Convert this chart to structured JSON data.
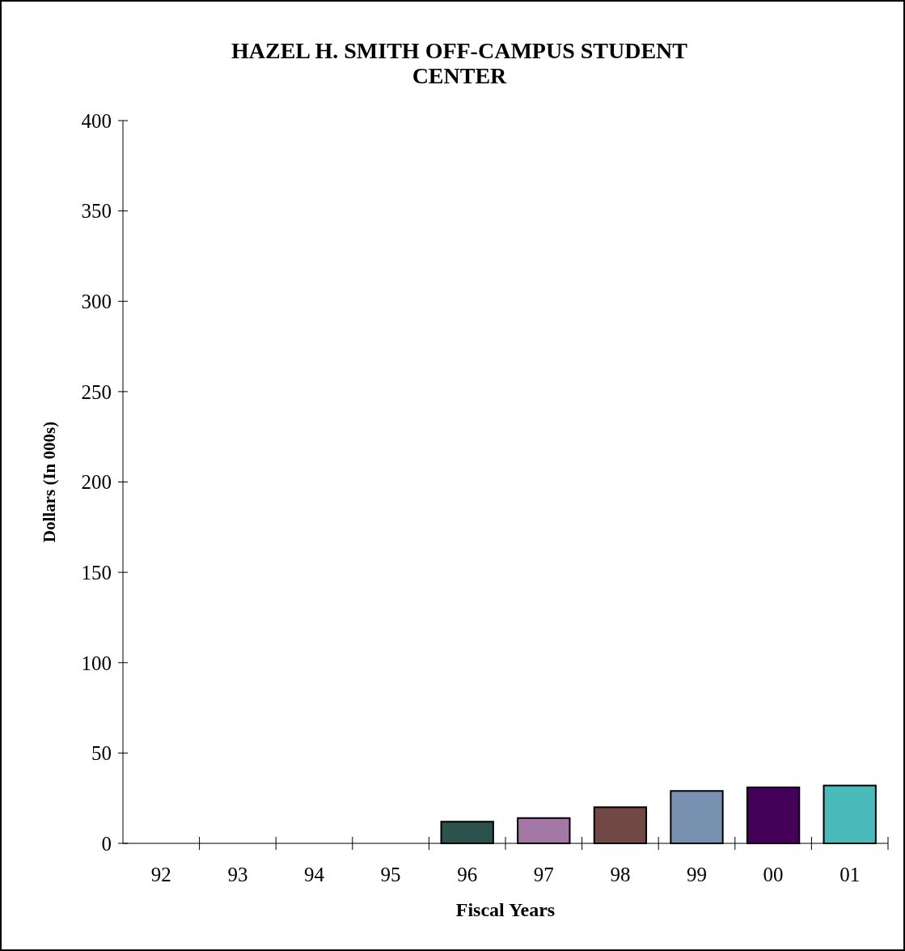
{
  "chart_data": {
    "type": "bar",
    "title": "HAZEL H. SMITH OFF-CAMPUS STUDENT CENTER",
    "xlabel": "Fiscal Years",
    "ylabel": "Dollars (In 000s)",
    "categories": [
      "92",
      "93",
      "94",
      "95",
      "96",
      "97",
      "98",
      "99",
      "00",
      "01"
    ],
    "values": [
      null,
      null,
      null,
      null,
      12,
      14,
      20,
      29,
      31,
      32
    ],
    "colors": [
      null,
      null,
      null,
      null,
      "#2b524d",
      "#a378a6",
      "#714845",
      "#7891b0",
      "#440058",
      "#4ababa"
    ],
    "ylim": [
      0,
      400
    ],
    "yticks": [
      0,
      50,
      100,
      150,
      200,
      250,
      300,
      350,
      400
    ]
  }
}
